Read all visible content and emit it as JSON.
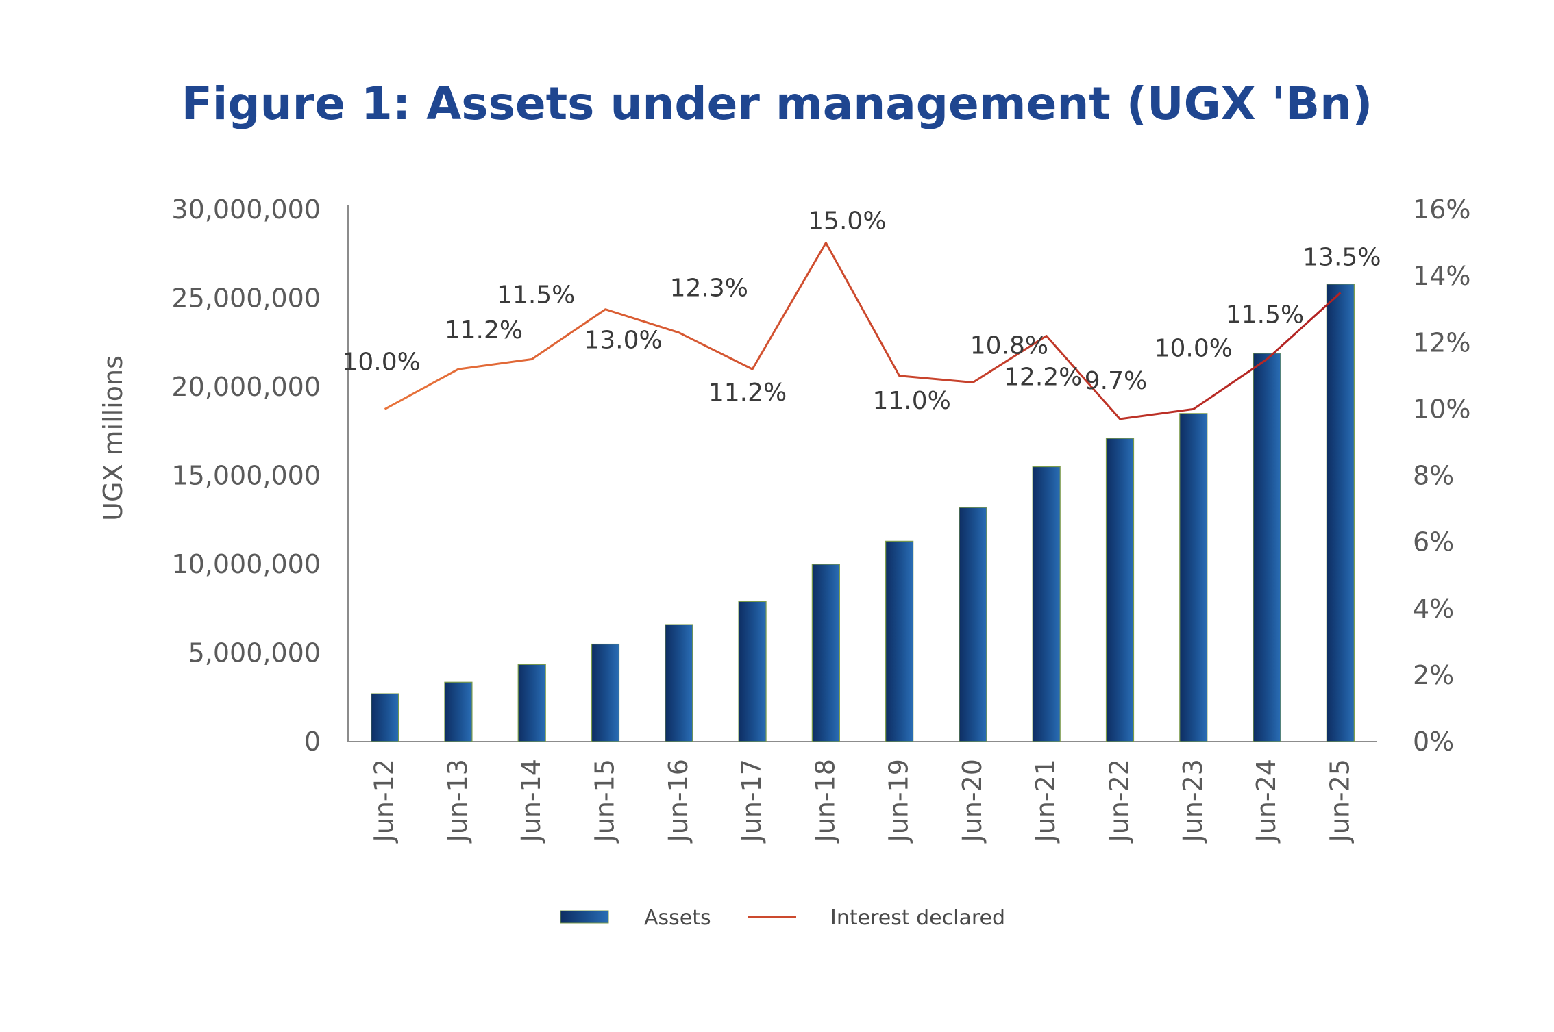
{
  "chart_data": {
    "type": "bar",
    "title": "Figure 1: Assets under management (UGX 'Bn)",
    "xlabel": "",
    "ylabel": "UGX millions",
    "y2label": "",
    "categories": [
      "Jun-12",
      "Jun-13",
      "Jun-14",
      "Jun-15",
      "Jun-16",
      "Jun-17",
      "Jun-18",
      "Jun-19",
      "Jun-20",
      "Jun-21",
      "Jun-22",
      "Jun-23",
      "Jun-24",
      "Jun-25"
    ],
    "ylim": [
      0,
      30000000
    ],
    "y_ticks": [
      "0",
      "5,000,000",
      "10,000,000",
      "15,000,000",
      "20,000,000",
      "25,000,000",
      "30,000,000"
    ],
    "y2lim": [
      0,
      16
    ],
    "y2_ticks": [
      "0%",
      "2%",
      "4%",
      "6%",
      "8%",
      "10%",
      "12%",
      "14%",
      "16%"
    ],
    "series": [
      {
        "name": "Assets",
        "type": "bar",
        "axis": "left",
        "color": "#1A4F8F",
        "values": [
          2700000,
          3350000,
          4350000,
          5500000,
          6600000,
          7900000,
          10000000,
          11300000,
          13200000,
          15500000,
          17100000,
          18500000,
          21900000,
          25800000
        ]
      },
      {
        "name": "Interest declared",
        "type": "line",
        "axis": "right",
        "color_start": "#E8733A",
        "color_end": "#B22222",
        "values": [
          10.0,
          11.2,
          11.5,
          13.0,
          12.3,
          11.2,
          15.0,
          11.0,
          10.8,
          12.2,
          9.7,
          10.0,
          11.5,
          13.5
        ],
        "labels": [
          "10.0%",
          "11.2%",
          "11.5%",
          "13.0%",
          "12.3%",
          "11.2%",
          "15.0%",
          "11.0%",
          "10.8%",
          "12.2%",
          "9.7%",
          "10.0%",
          "11.5%",
          "13.5%"
        ]
      }
    ],
    "grid": false,
    "legend_position": "bottom"
  }
}
